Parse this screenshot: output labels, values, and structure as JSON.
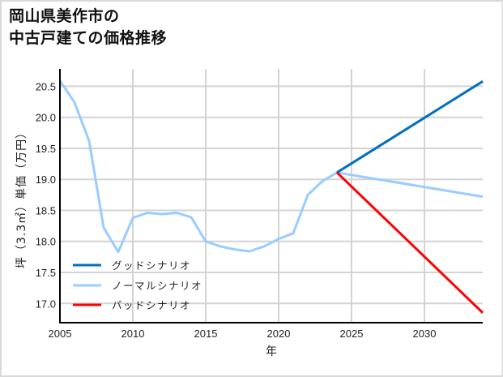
{
  "title": {
    "line1": "岡山県美作市の",
    "line2": "中古戸建ての価格推移"
  },
  "colors": {
    "good": "#0070c0",
    "normal": "#99ccff",
    "bad": "#ff0000",
    "grid": "#d3d3d3",
    "axis": "#000000"
  },
  "chart_data": {
    "type": "line",
    "title": "岡山県美作市の中古戸建ての価格推移",
    "xlabel": "年",
    "ylabel": "坪（3.3㎡）単価（万円）",
    "xlim": [
      2005,
      2034
    ],
    "ylim": [
      16.69,
      20.78
    ],
    "xticks": [
      2005,
      2010,
      2015,
      2020,
      2025,
      2030
    ],
    "yticks": [
      17.0,
      17.5,
      18.0,
      18.5,
      19.0,
      19.5,
      20.0,
      20.5
    ],
    "ytick_labels": [
      "17.0",
      "17.5",
      "18.0",
      "18.5",
      "19.0",
      "19.5",
      "20.0",
      "20.5"
    ],
    "grid": true,
    "legend_position": "lower left",
    "series": [
      {
        "name": "グッドシナリオ",
        "color": "#0070c0",
        "x": [
          2024,
          2034
        ],
        "y": [
          19.11,
          20.58
        ]
      },
      {
        "name": "ノーマルシナリオ",
        "color": "#99ccff",
        "x": [
          2005,
          2006,
          2007,
          2008,
          2009,
          2010,
          2011,
          2012,
          2013,
          2014,
          2015,
          2016,
          2017,
          2018,
          2019,
          2020,
          2021,
          2022,
          2023,
          2024,
          2034
        ],
        "y": [
          20.59,
          20.24,
          19.62,
          18.22,
          17.83,
          18.38,
          18.46,
          18.44,
          18.46,
          18.39,
          18.0,
          17.92,
          17.87,
          17.84,
          17.92,
          18.04,
          18.13,
          18.75,
          18.97,
          19.11,
          18.72
        ]
      },
      {
        "name": "バッドシナリオ",
        "color": "#ff0000",
        "x": [
          2024,
          2034
        ],
        "y": [
          19.11,
          16.85
        ]
      }
    ]
  }
}
